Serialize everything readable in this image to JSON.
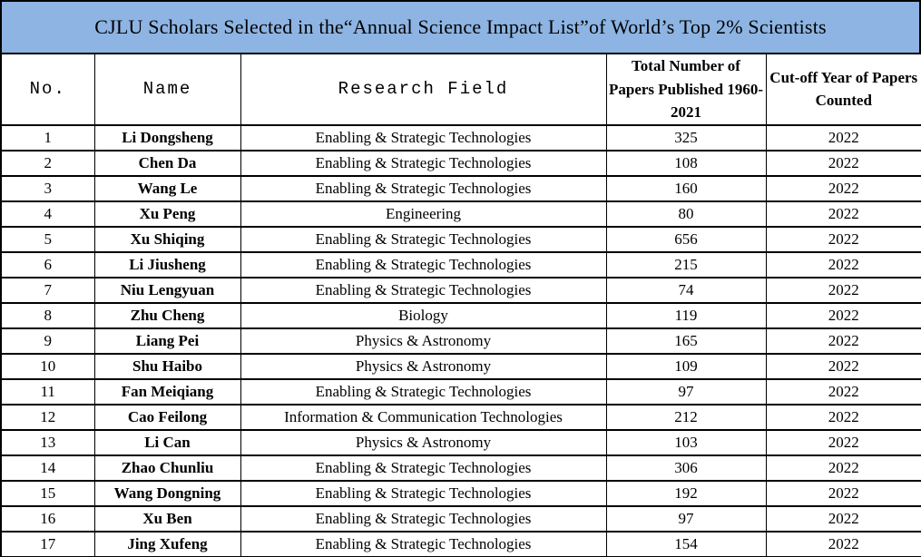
{
  "title": "CJLU Scholars Selected in the“Annual Science Impact List”of World’s Top 2% Scientists",
  "colors": {
    "title_background": "#8db4e2",
    "border": "#000000",
    "text": "#000000",
    "page_background": "#ffffff"
  },
  "table": {
    "headers": [
      "No.",
      "Name",
      "Research Field",
      "Total Number of Papers Published 1960-2021",
      "Cut-off Year of Papers Counted"
    ],
    "rows": [
      {
        "no": "1",
        "name": "Li Dongsheng",
        "field": "Enabling & Strategic Technologies",
        "papers": "325",
        "year": "2022"
      },
      {
        "no": "2",
        "name": "Chen Da",
        "field": "Enabling & Strategic Technologies",
        "papers": "108",
        "year": "2022"
      },
      {
        "no": "3",
        "name": "Wang Le",
        "field": "Enabling & Strategic Technologies",
        "papers": "160",
        "year": "2022"
      },
      {
        "no": "4",
        "name": "Xu Peng",
        "field": "Engineering",
        "papers": "80",
        "year": "2022"
      },
      {
        "no": "5",
        "name": "Xu Shiqing",
        "field": "Enabling & Strategic Technologies",
        "papers": "656",
        "year": "2022"
      },
      {
        "no": "6",
        "name": "Li Jiusheng",
        "field": "Enabling & Strategic Technologies",
        "papers": "215",
        "year": "2022"
      },
      {
        "no": "7",
        "name": "Niu Lengyuan",
        "field": "Enabling & Strategic Technologies",
        "papers": "74",
        "year": "2022"
      },
      {
        "no": "8",
        "name": "Zhu Cheng",
        "field": "Biology",
        "papers": "119",
        "year": "2022"
      },
      {
        "no": "9",
        "name": "Liang Pei",
        "field": "Physics & Astronomy",
        "papers": "165",
        "year": "2022"
      },
      {
        "no": "10",
        "name": "Shu Haibo",
        "field": "Physics & Astronomy",
        "papers": "109",
        "year": "2022"
      },
      {
        "no": "11",
        "name": "Fan Meiqiang",
        "field": "Enabling & Strategic Technologies",
        "papers": "97",
        "year": "2022"
      },
      {
        "no": "12",
        "name": "Cao Feilong",
        "field": "Information & Communication Technologies",
        "papers": "212",
        "year": "2022"
      },
      {
        "no": "13",
        "name": "Li Can",
        "field": "Physics & Astronomy",
        "papers": "103",
        "year": "2022"
      },
      {
        "no": "14",
        "name": "Zhao Chunliu",
        "field": "Enabling & Strategic Technologies",
        "papers": "306",
        "year": "2022"
      },
      {
        "no": "15",
        "name": "Wang Dongning",
        "field": "Enabling & Strategic Technologies",
        "papers": "192",
        "year": "2022"
      },
      {
        "no": "16",
        "name": "Xu Ben",
        "field": "Enabling & Strategic Technologies",
        "papers": "97",
        "year": "2022"
      },
      {
        "no": "17",
        "name": "Jing Xufeng",
        "field": "Enabling & Strategic Technologies",
        "papers": "154",
        "year": "2022"
      }
    ]
  }
}
